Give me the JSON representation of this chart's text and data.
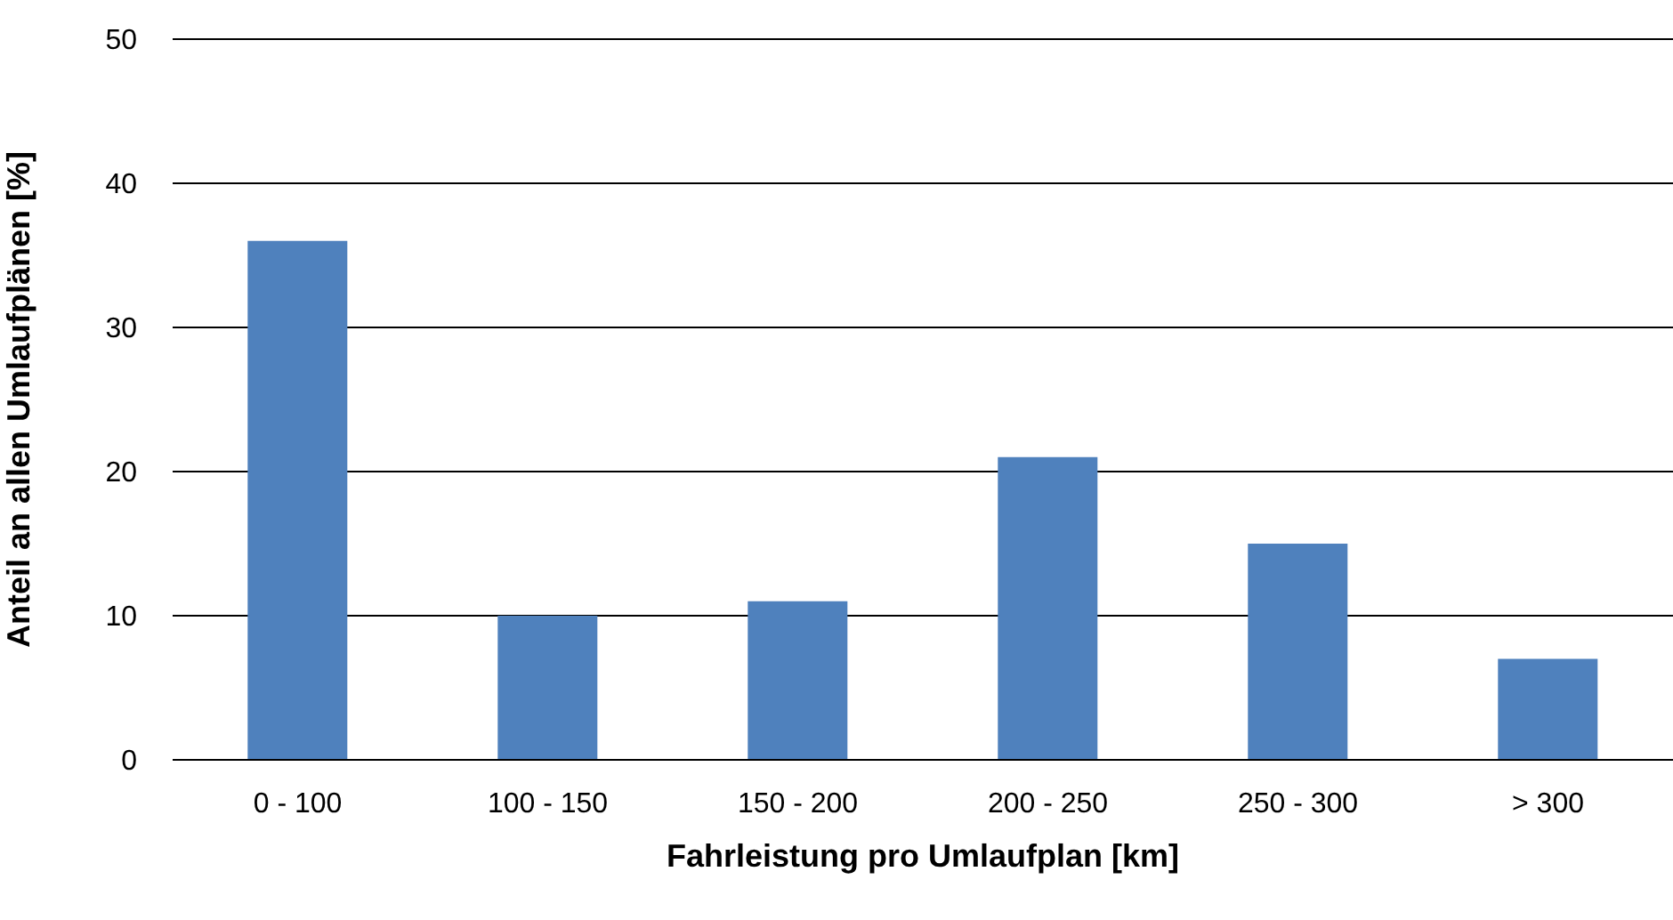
{
  "chart_data": {
    "type": "bar",
    "xlabel": "Fahrleistung pro Umlaufplan [km]",
    "ylabel": "Anteil an allen Umlaufplänen [%]",
    "categories": [
      "0 - 100",
      "100 - 150",
      "150 - 200",
      "200 - 250",
      "250 - 300",
      "> 300"
    ],
    "values": [
      36,
      10,
      11,
      21,
      15,
      7
    ],
    "color": "#4f81bd",
    "ylim": [
      0,
      50
    ],
    "yticks": [
      0,
      10,
      20,
      30,
      40,
      50
    ],
    "grid": "y",
    "legend": false
  }
}
